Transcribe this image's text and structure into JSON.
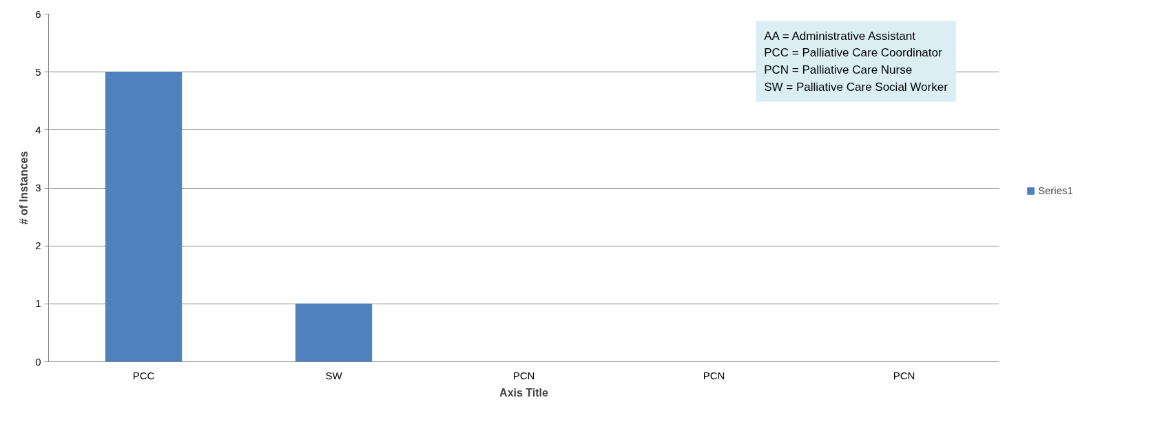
{
  "chart_data": {
    "type": "bar",
    "categories": [
      "PCC",
      "SW",
      "PCN",
      "PCN",
      "PCN"
    ],
    "series": [
      {
        "name": "Series1",
        "color": "#4f81bd",
        "values": [
          5,
          1,
          0,
          0,
          0
        ]
      }
    ],
    "xlabel": "Axis Title",
    "ylabel": "# of Instances",
    "ylim": [
      0,
      6
    ],
    "yticks": [
      0,
      1,
      2,
      3,
      4,
      5,
      6
    ],
    "grid": "y",
    "legend": "right",
    "annotations": [
      "AA = Administrative Assistant",
      "PCC = Palliative Care Coordinator",
      "PCN = Palliative Care Nurse",
      "SW = Palliative Care Social Worker"
    ]
  }
}
